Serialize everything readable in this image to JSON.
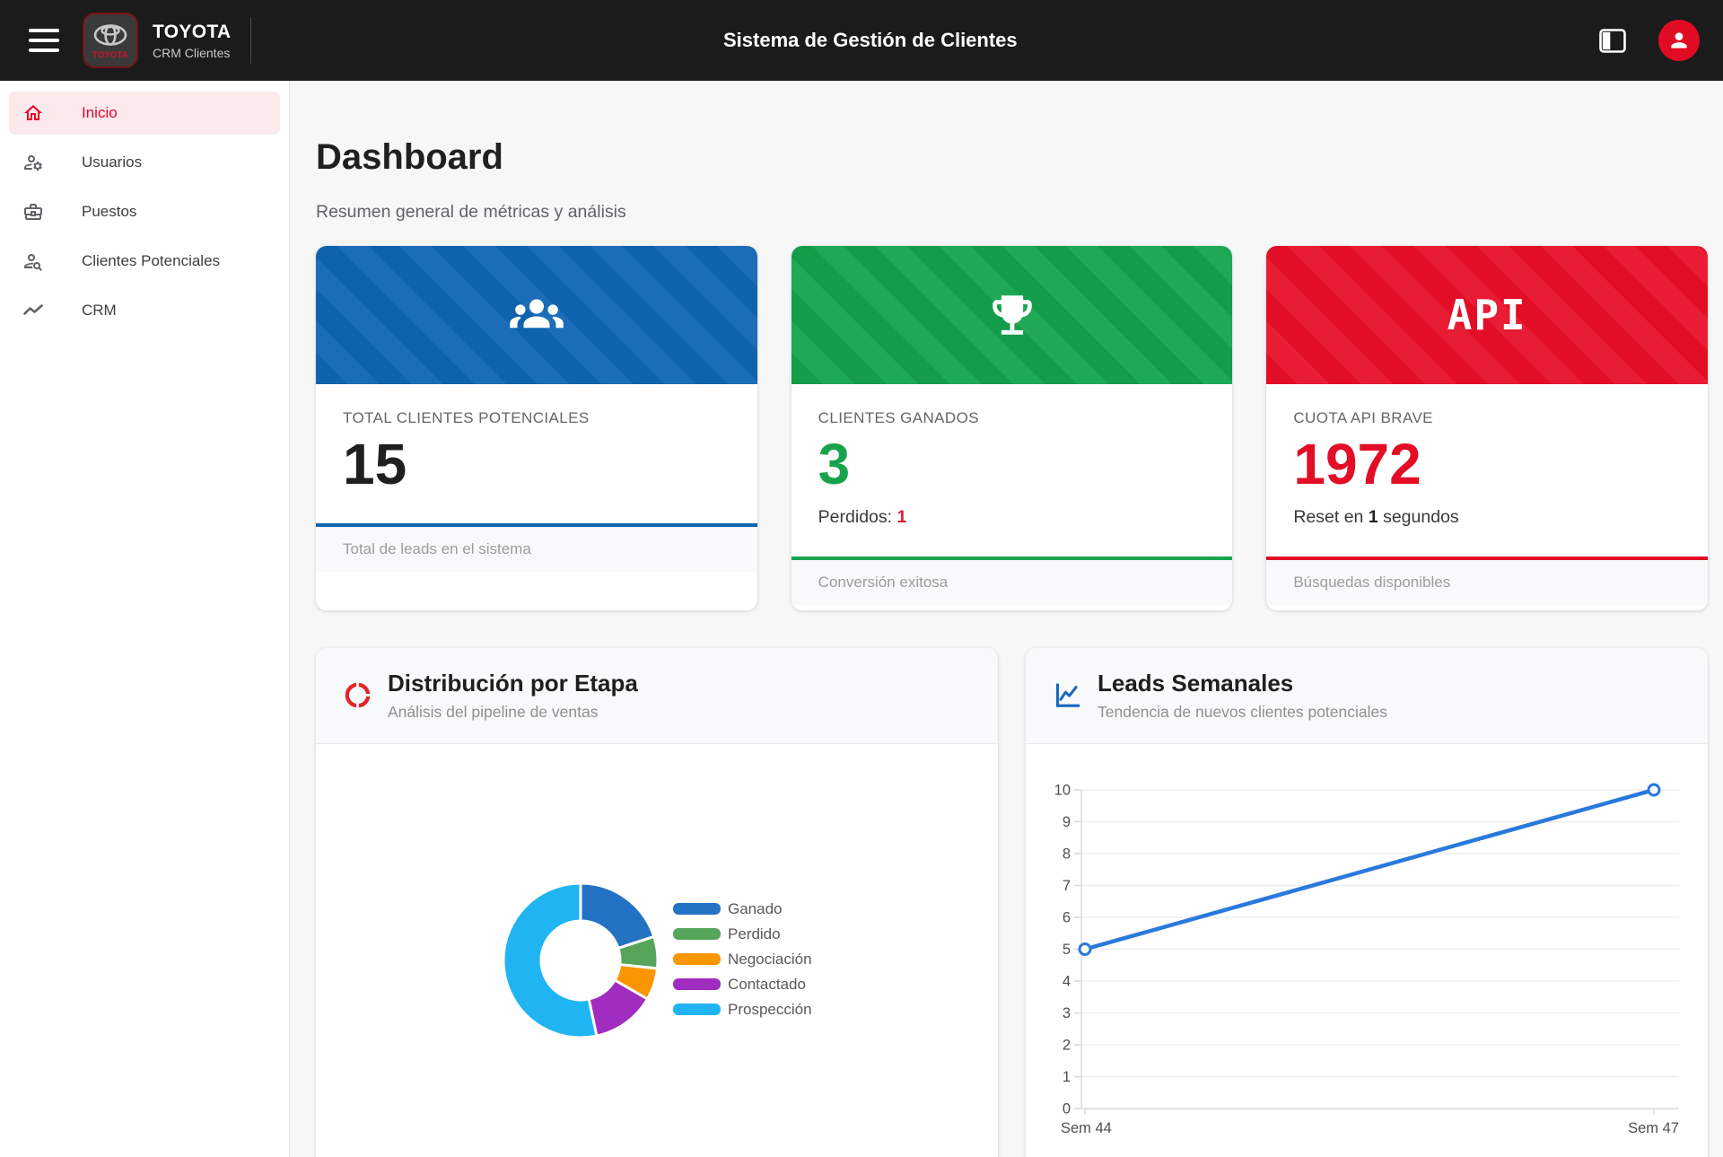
{
  "header": {
    "title": "Sistema de Gestión de Clientes",
    "brand_name": "TOYOTA",
    "brand_subtitle": "CRM Clientes",
    "logo_text": "TOYOTA"
  },
  "sidebar": {
    "items": [
      {
        "label": "Inicio",
        "active": true
      },
      {
        "label": "Usuarios",
        "active": false
      },
      {
        "label": "Puestos",
        "active": false
      },
      {
        "label": "Clientes Potenciales",
        "active": false
      },
      {
        "label": "CRM",
        "active": false
      }
    ]
  },
  "page": {
    "title": "Dashboard",
    "subtitle": "Resumen general de métricas y análisis"
  },
  "stat_cards": [
    {
      "label": "TOTAL CLIENTES POTENCIALES",
      "value": "15",
      "footer": "Total de leads en el sistema",
      "accent": "#1063af",
      "stripe_a": "#0f63ad",
      "stripe_b": "#1b6db7",
      "value_color": "#1f1f1f",
      "header_icon": "people-group-icon"
    },
    {
      "label": "CLIENTES GANADOS",
      "value": "3",
      "sub_prefix": "Perdidos: ",
      "sub_value": "1",
      "sub_suffix": "",
      "sub_value_color": "#d52234",
      "footer": "Conversión exitosa",
      "accent": "#17a34c",
      "stripe_a": "#159c4a",
      "stripe_b": "#1fa855",
      "value_color": "#17a34c",
      "header_icon": "trophy-icon"
    },
    {
      "label": "CUOTA API BRAVE",
      "value": "1972",
      "sub_prefix": "Reset en ",
      "sub_value": "1",
      "sub_suffix": " segundos",
      "sub_value_color": "#1f1f1f",
      "footer": "Búsquedas disponibles",
      "accent": "#e30d26",
      "stripe_a": "#e20e26",
      "stripe_b": "#e81d34",
      "value_color": "#e30d26",
      "header_text": "API"
    }
  ],
  "chart_data": [
    {
      "type": "doughnut",
      "title": "Distribución por Etapa",
      "subtitle": "Análisis del pipeline de ventas",
      "labels": [
        "Ganado",
        "Perdido",
        "Negociación",
        "Contactado",
        "Prospección"
      ],
      "values": [
        3,
        1,
        1,
        2,
        8
      ],
      "total": 15,
      "colors": [
        "#2472c4",
        "#57a45b",
        "#fb9603",
        "#a12cc0",
        "#20b4f3"
      ],
      "legend_position": "right"
    },
    {
      "type": "line",
      "title": "Leads Semanales",
      "subtitle": "Tendencia de nuevos clientes potenciales",
      "x": [
        "Sem 44",
        "Sem 47"
      ],
      "values": [
        5,
        10
      ],
      "ylim": [
        0,
        10
      ],
      "y_step": 1,
      "line_color": "#2a79dc",
      "grid": true,
      "tick_color": "#4f4f4f"
    }
  ]
}
